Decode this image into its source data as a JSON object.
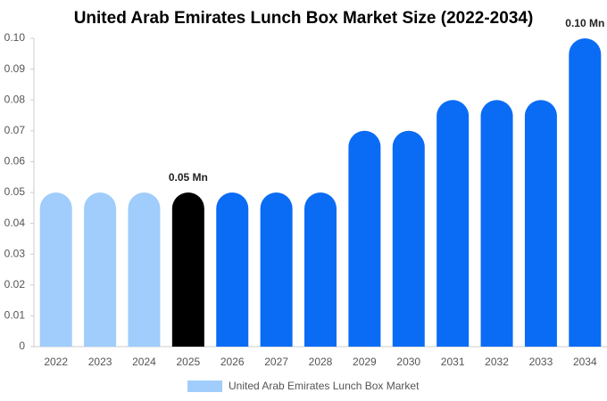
{
  "chart_data": {
    "type": "bar",
    "title": "United Arab Emirates Lunch Box Market Size (2022-2034)",
    "categories": [
      "2022",
      "2023",
      "2024",
      "2025",
      "2026",
      "2027",
      "2028",
      "2029",
      "2030",
      "2031",
      "2032",
      "2033",
      "2034"
    ],
    "series": [
      {
        "name": "United Arab Emirates Lunch Box Market",
        "color": "#a0cdfc",
        "values": [
          0.05,
          0.05,
          0.05,
          0.05,
          0.05,
          0.05,
          0.05,
          0.07,
          0.07,
          0.08,
          0.08,
          0.08,
          0.1
        ],
        "colors": [
          "#a0cdfc",
          "#a0cdfc",
          "#a0cdfc",
          "#000000",
          "#0a6cf5",
          "#0a6cf5",
          "#0a6cf5",
          "#0a6cf5",
          "#0a6cf5",
          "#0a6cf5",
          "#0a6cf5",
          "#0a6cf5",
          "#0a6cf5"
        ],
        "value_labels": [
          null,
          null,
          null,
          "0.05 Mn",
          null,
          null,
          null,
          null,
          null,
          null,
          null,
          null,
          "0.10 Mn"
        ]
      }
    ],
    "ylim": [
      0,
      0.1
    ],
    "yticks": [
      0,
      0.01,
      0.02,
      0.03,
      0.04,
      0.05,
      0.06,
      0.07,
      0.08,
      0.09,
      {
        "value": 0.1,
        "label": "0.10"
      }
    ],
    "grid": false
  }
}
